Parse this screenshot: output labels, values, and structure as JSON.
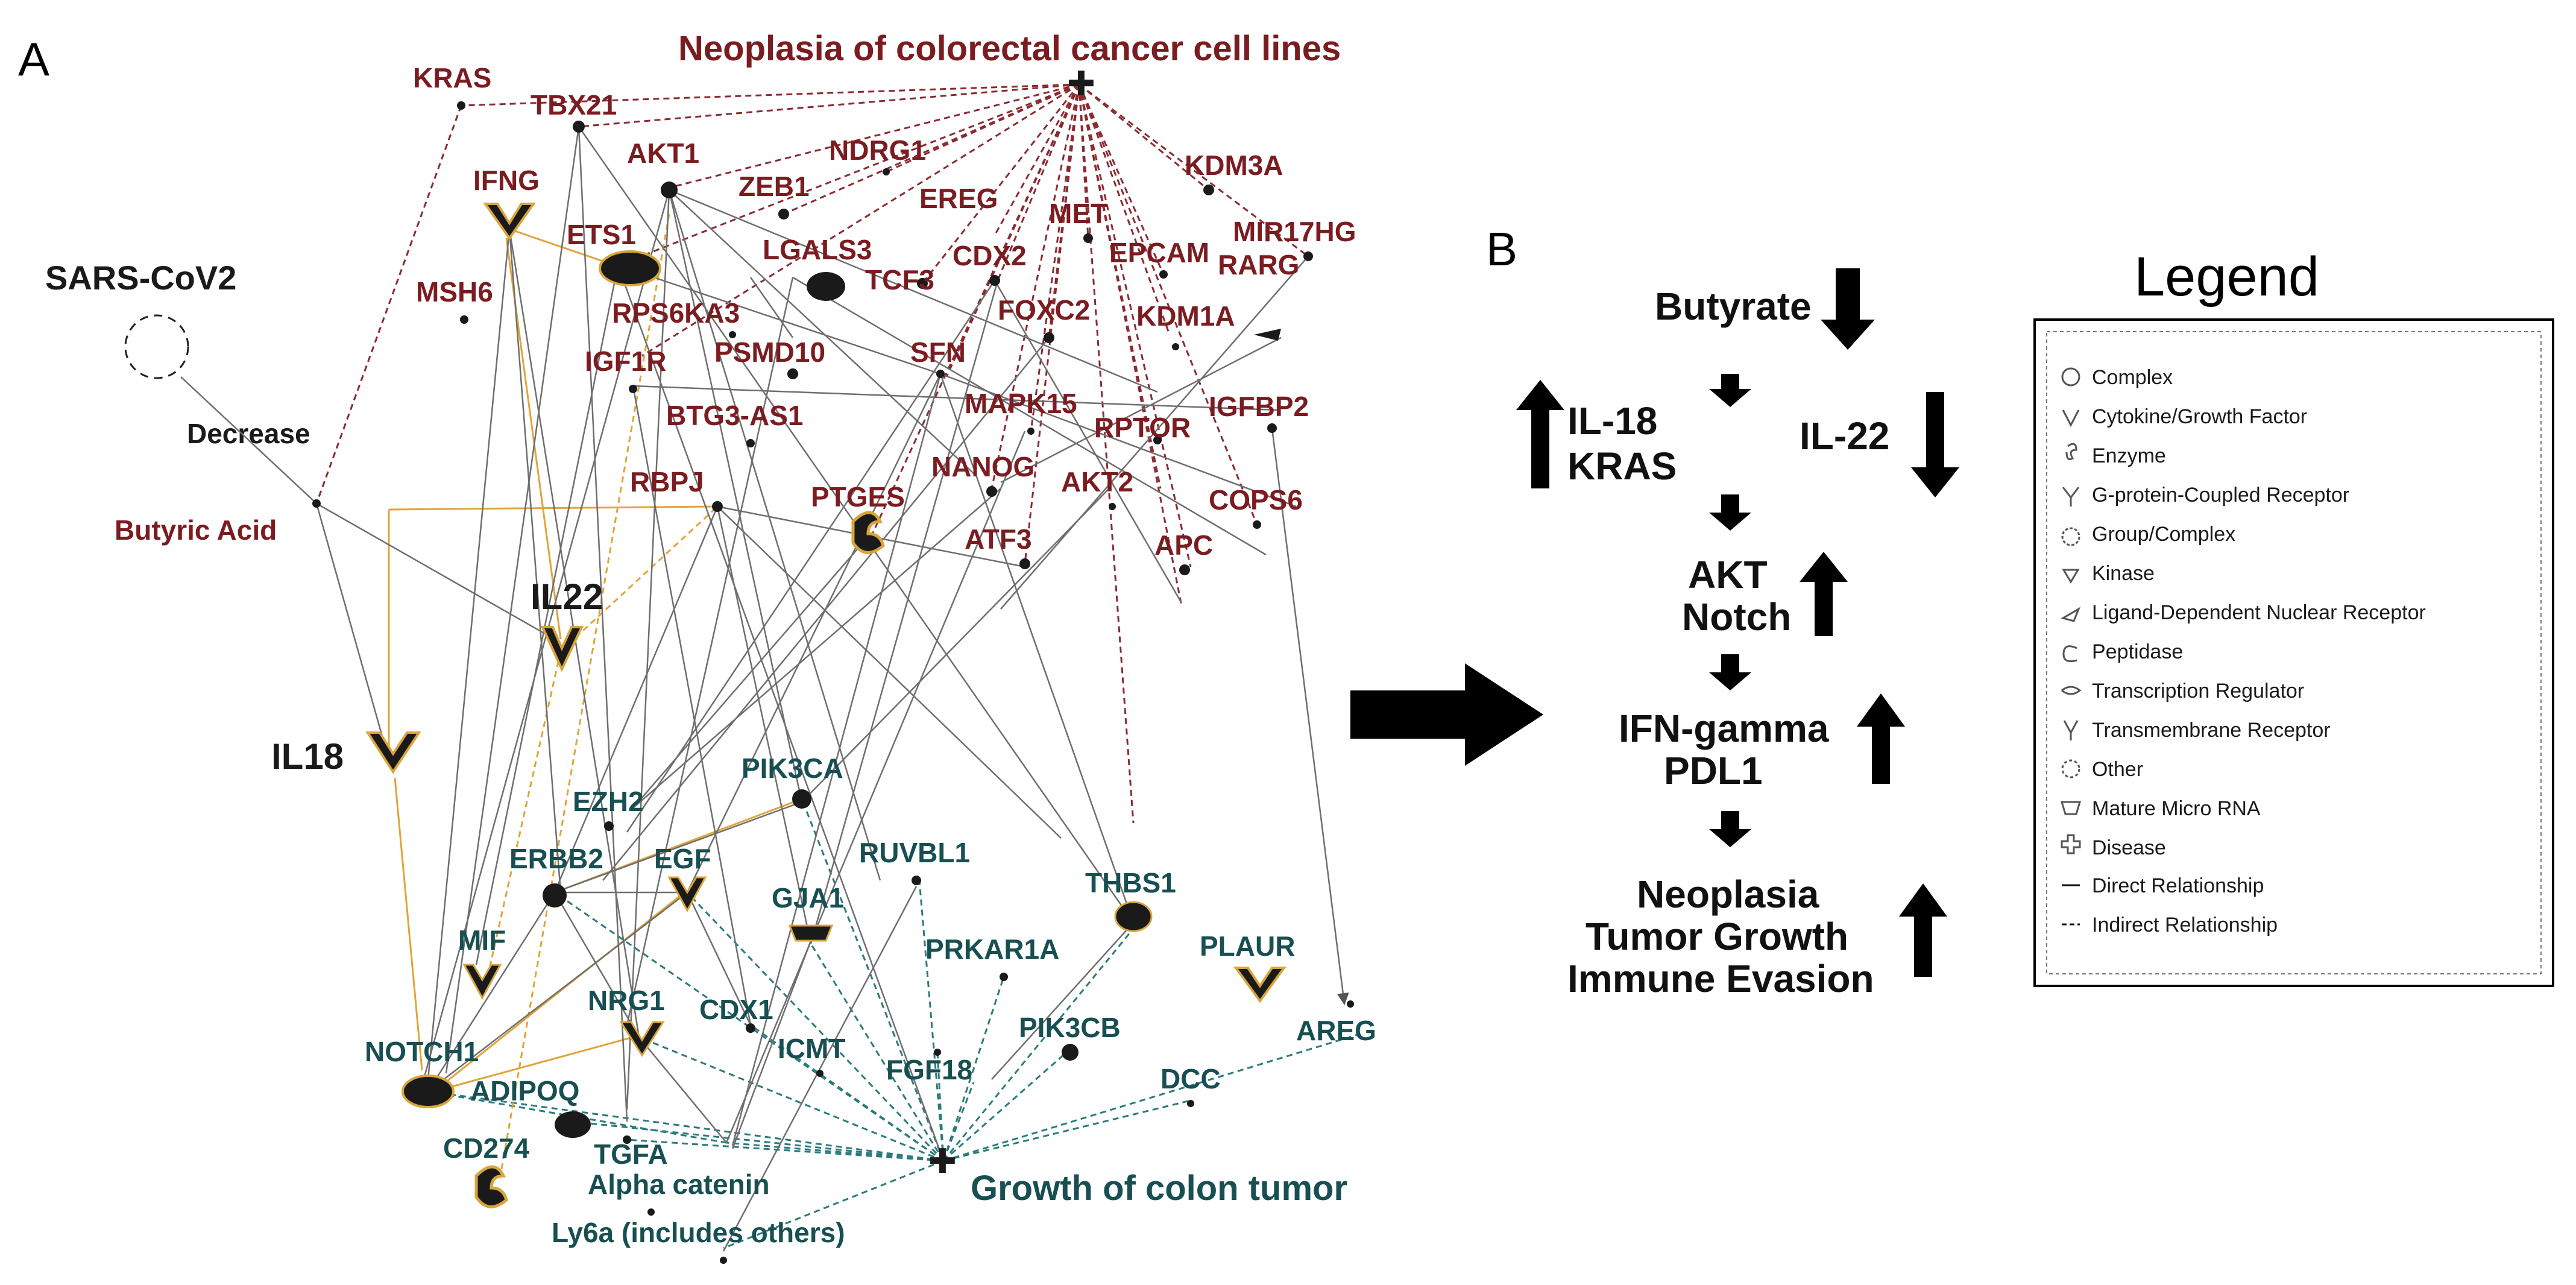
{
  "panels": {
    "a": "A",
    "b": "B"
  },
  "diseases": {
    "neoplasia": "Neoplasia of colorectal cancer cell lines",
    "growth": "Growth of colon tumor"
  },
  "virus": {
    "label": "SARS-CoV2",
    "relation": "Decrease"
  },
  "butyric_acid": "Butyric Acid",
  "genes": {
    "kras": "KRAS",
    "tbx21": "TBX21",
    "ifng": "IFNG",
    "akt1": "AKT1",
    "ndrg1": "NDRG1",
    "kdm3a": "KDM3A",
    "mir17hg": "MIR17HG",
    "zeb1": "ZEB1",
    "ets1": "ETS1",
    "ereg": "EREG",
    "met": "MET",
    "lgals3": "LGALS3",
    "cdx2": "CDX2",
    "epcam": "EPCAM",
    "msh6": "MSH6",
    "tcf3": "TCF3",
    "rarg": "RARG",
    "rps6ka3": "RPS6KA3",
    "foxc2": "FOXC2",
    "kdm1a": "KDM1A",
    "igf1r": "IGF1R",
    "psmd10": "PSMD10",
    "sfn": "SFN",
    "igfbp2": "IGFBP2",
    "btg3as1": "BTG3-AS1",
    "mapk15": "MAPK15",
    "rptor": "RPTOR",
    "nanog": "NANOG",
    "akt2": "AKT2",
    "cops6": "COPS6",
    "rbpj": "RBPJ",
    "ptges": "PTGES",
    "atf3": "ATF3",
    "apc": "APC",
    "il22": "IL22",
    "il18": "IL18",
    "pik3ca": "PIK3CA",
    "ezh2": "EZH2",
    "erbb2": "ERBB2",
    "egf": "EGF",
    "ruvbl1": "RUVBL1",
    "thbs1": "THBS1",
    "gja1": "GJA1",
    "mif": "MIF",
    "prkar1a": "PRKAR1A",
    "plaur": "PLAUR",
    "cdx1": "CDX1",
    "nrg1": "NRG1",
    "icmt": "ICMT",
    "fgf18": "FGF18",
    "pik3cb": "PIK3CB",
    "dcc": "DCC",
    "areg": "AREG",
    "notch1": "NOTCH1",
    "adipoq": "ADIPOQ",
    "tgfa": "TGFA",
    "cd274": "CD274",
    "alpha_catenin": "Alpha catenin",
    "ly6a": "Ly6a (includes others)"
  },
  "flow": {
    "butyrate": "Butyrate",
    "il18": "IL-18",
    "kras": "KRAS",
    "il22": "IL-22",
    "akt": "AKT",
    "notch": "Notch",
    "ifn": "IFN-gamma",
    "pdl1": "PDL1",
    "outcome1": "Neoplasia",
    "outcome2": "Tumor Growth",
    "outcome3": "Immune Evasion"
  },
  "legend": {
    "title": "Legend",
    "items": [
      {
        "symbol": "complex-icon",
        "label": "Complex"
      },
      {
        "symbol": "cytokine-icon",
        "label": "Cytokine/Growth Factor"
      },
      {
        "symbol": "enzyme-icon",
        "label": "Enzyme"
      },
      {
        "symbol": "gpcr-icon",
        "label": "G-protein-Coupled Receptor"
      },
      {
        "symbol": "group-complex-icon",
        "label": "Group/Complex"
      },
      {
        "symbol": "kinase-icon",
        "label": "Kinase"
      },
      {
        "symbol": "nuclear-receptor-icon",
        "label": "Ligand-Dependent Nuclear Receptor"
      },
      {
        "symbol": "peptidase-icon",
        "label": "Peptidase"
      },
      {
        "symbol": "transcription-regulator-icon",
        "label": "Transcription Regulator"
      },
      {
        "symbol": "transmembrane-receptor-icon",
        "label": "Transmembrane Receptor"
      },
      {
        "symbol": "other-icon",
        "label": "Other"
      },
      {
        "symbol": "microrna-icon",
        "label": "Mature Micro RNA"
      },
      {
        "symbol": "disease-icon",
        "label": "Disease"
      },
      {
        "symbol": "solid-line-icon",
        "label": "Direct Relationship"
      },
      {
        "symbol": "dashed-line-icon",
        "label": "Indirect Relationship"
      }
    ]
  },
  "colors": {
    "neoplasia": "#7b1c21",
    "growth": "#174f52",
    "orange_edge": "#e0a43a",
    "gray_edge": "#7a7a7a"
  }
}
